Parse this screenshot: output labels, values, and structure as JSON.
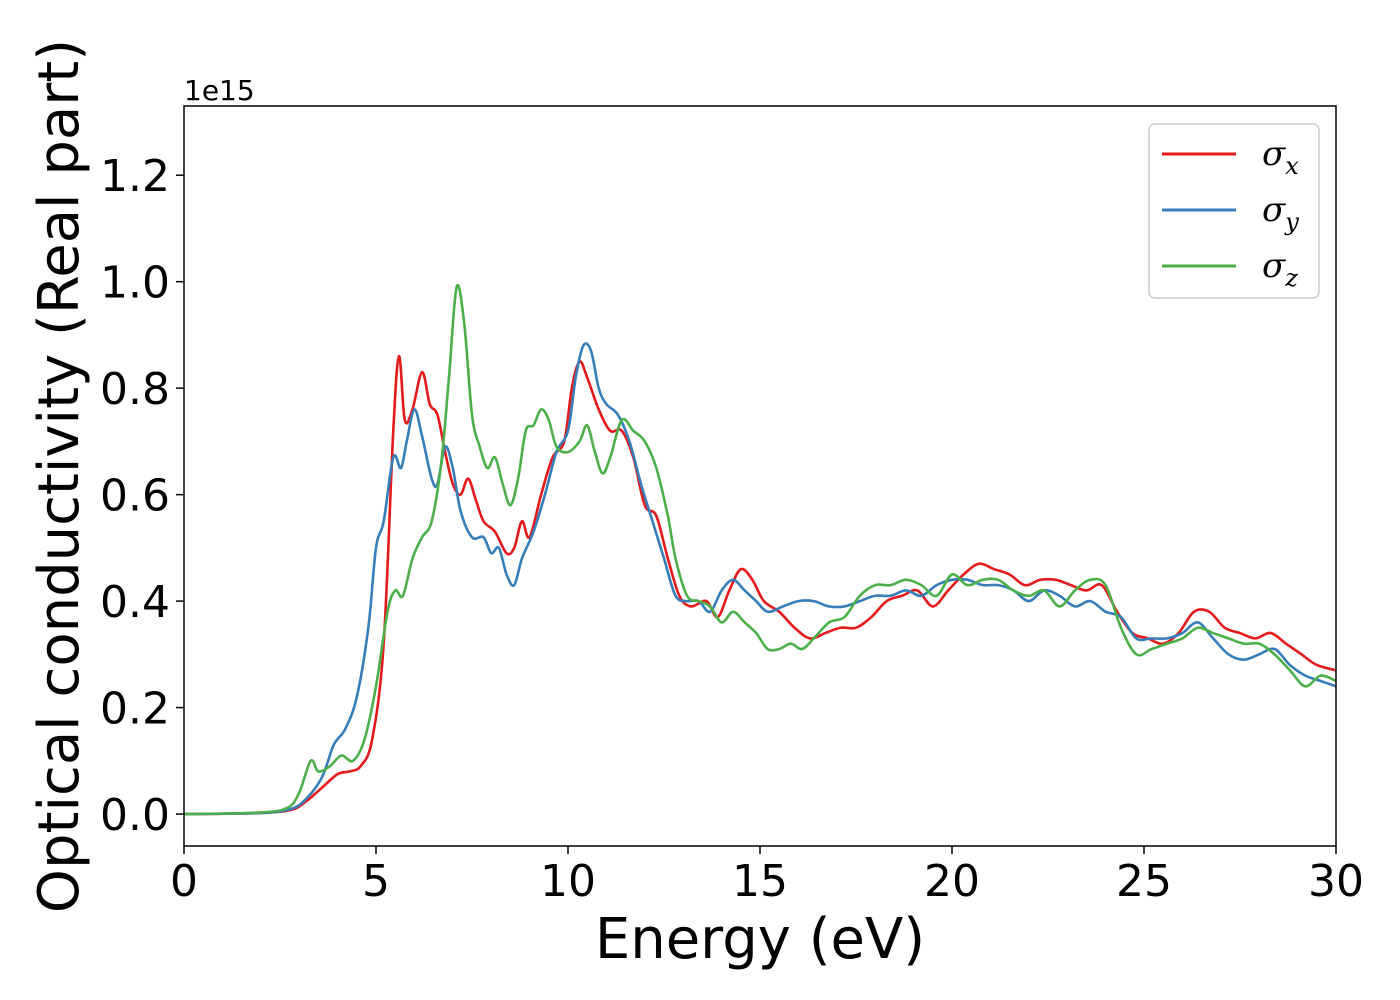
{
  "chart_data": {
    "type": "line",
    "xlabel": "Energy (eV)",
    "ylabel": "Optical conductivity (Real part)",
    "y_offset_text": "1e15",
    "xlim": [
      0,
      30
    ],
    "ylim": [
      -0.06,
      1.33
    ],
    "x_ticks": [
      0,
      5,
      10,
      15,
      20,
      25,
      30
    ],
    "x_tick_labels": [
      "0",
      "5",
      "10",
      "15",
      "20",
      "25",
      "30"
    ],
    "y_ticks": [
      0.0,
      0.2,
      0.4,
      0.6,
      0.8,
      1.0,
      1.2
    ],
    "y_tick_labels": [
      "0.0",
      "0.2",
      "0.4",
      "0.6",
      "0.8",
      "1.0",
      "1.2"
    ],
    "grid": false,
    "legend_position": "top-right",
    "series": [
      {
        "name": "σx",
        "symbol": "σ",
        "subscript": "x",
        "color": "#e41a1c",
        "points": [
          [
            0,
            0
          ],
          [
            2,
            0.002
          ],
          [
            2.8,
            0.008
          ],
          [
            3.2,
            0.025
          ],
          [
            3.6,
            0.05
          ],
          [
            4,
            0.075
          ],
          [
            4.3,
            0.08
          ],
          [
            4.6,
            0.09
          ],
          [
            4.9,
            0.14
          ],
          [
            5.2,
            0.32
          ],
          [
            5.45,
            0.72
          ],
          [
            5.6,
            0.86
          ],
          [
            5.75,
            0.74
          ],
          [
            5.95,
            0.76
          ],
          [
            6.2,
            0.83
          ],
          [
            6.4,
            0.77
          ],
          [
            6.6,
            0.75
          ],
          [
            6.8,
            0.68
          ],
          [
            7,
            0.62
          ],
          [
            7.2,
            0.6
          ],
          [
            7.4,
            0.63
          ],
          [
            7.6,
            0.59
          ],
          [
            7.8,
            0.55
          ],
          [
            8.1,
            0.53
          ],
          [
            8.4,
            0.49
          ],
          [
            8.6,
            0.5
          ],
          [
            8.8,
            0.55
          ],
          [
            9,
            0.52
          ],
          [
            9.3,
            0.6
          ],
          [
            9.6,
            0.67
          ],
          [
            9.9,
            0.7
          ],
          [
            10.1,
            0.8
          ],
          [
            10.3,
            0.85
          ],
          [
            10.5,
            0.82
          ],
          [
            10.8,
            0.76
          ],
          [
            11.1,
            0.72
          ],
          [
            11.4,
            0.72
          ],
          [
            11.7,
            0.67
          ],
          [
            12,
            0.58
          ],
          [
            12.3,
            0.56
          ],
          [
            12.6,
            0.48
          ],
          [
            12.9,
            0.41
          ],
          [
            13.2,
            0.39
          ],
          [
            13.6,
            0.4
          ],
          [
            13.9,
            0.37
          ],
          [
            14.2,
            0.42
          ],
          [
            14.5,
            0.46
          ],
          [
            14.8,
            0.44
          ],
          [
            15.1,
            0.4
          ],
          [
            15.5,
            0.38
          ],
          [
            15.9,
            0.35
          ],
          [
            16.3,
            0.33
          ],
          [
            16.7,
            0.34
          ],
          [
            17.1,
            0.35
          ],
          [
            17.5,
            0.35
          ],
          [
            17.9,
            0.37
          ],
          [
            18.3,
            0.4
          ],
          [
            18.7,
            0.41
          ],
          [
            19.1,
            0.42
          ],
          [
            19.5,
            0.39
          ],
          [
            19.9,
            0.42
          ],
          [
            20.3,
            0.45
          ],
          [
            20.7,
            0.47
          ],
          [
            21.1,
            0.46
          ],
          [
            21.5,
            0.45
          ],
          [
            21.9,
            0.43
          ],
          [
            22.3,
            0.44
          ],
          [
            22.7,
            0.44
          ],
          [
            23.1,
            0.43
          ],
          [
            23.5,
            0.42
          ],
          [
            23.9,
            0.43
          ],
          [
            24.3,
            0.38
          ],
          [
            24.7,
            0.34
          ],
          [
            25.1,
            0.33
          ],
          [
            25.5,
            0.32
          ],
          [
            25.9,
            0.34
          ],
          [
            26.3,
            0.38
          ],
          [
            26.7,
            0.38
          ],
          [
            27.1,
            0.35
          ],
          [
            27.5,
            0.34
          ],
          [
            27.9,
            0.33
          ],
          [
            28.3,
            0.34
          ],
          [
            28.7,
            0.32
          ],
          [
            29.1,
            0.3
          ],
          [
            29.5,
            0.28
          ],
          [
            30,
            0.27
          ]
        ]
      },
      {
        "name": "σy",
        "symbol": "σ",
        "subscript": "y",
        "color": "#377eb8",
        "points": [
          [
            0,
            0
          ],
          [
            2,
            0.002
          ],
          [
            2.8,
            0.01
          ],
          [
            3.2,
            0.03
          ],
          [
            3.6,
            0.07
          ],
          [
            3.9,
            0.13
          ],
          [
            4.2,
            0.16
          ],
          [
            4.5,
            0.22
          ],
          [
            4.8,
            0.35
          ],
          [
            5.0,
            0.5
          ],
          [
            5.2,
            0.55
          ],
          [
            5.45,
            0.67
          ],
          [
            5.65,
            0.65
          ],
          [
            5.8,
            0.7
          ],
          [
            6.0,
            0.76
          ],
          [
            6.2,
            0.71
          ],
          [
            6.45,
            0.63
          ],
          [
            6.6,
            0.62
          ],
          [
            6.8,
            0.69
          ],
          [
            7,
            0.65
          ],
          [
            7.2,
            0.57
          ],
          [
            7.5,
            0.52
          ],
          [
            7.8,
            0.52
          ],
          [
            8.0,
            0.49
          ],
          [
            8.2,
            0.5
          ],
          [
            8.4,
            0.45
          ],
          [
            8.6,
            0.43
          ],
          [
            8.8,
            0.48
          ],
          [
            9.1,
            0.53
          ],
          [
            9.4,
            0.6
          ],
          [
            9.7,
            0.68
          ],
          [
            10,
            0.72
          ],
          [
            10.2,
            0.82
          ],
          [
            10.4,
            0.88
          ],
          [
            10.6,
            0.87
          ],
          [
            10.8,
            0.8
          ],
          [
            11.0,
            0.77
          ],
          [
            11.3,
            0.75
          ],
          [
            11.6,
            0.7
          ],
          [
            11.9,
            0.62
          ],
          [
            12.2,
            0.55
          ],
          [
            12.5,
            0.48
          ],
          [
            12.8,
            0.41
          ],
          [
            13.1,
            0.4
          ],
          [
            13.4,
            0.4
          ],
          [
            13.7,
            0.38
          ],
          [
            14.0,
            0.42
          ],
          [
            14.3,
            0.44
          ],
          [
            14.6,
            0.42
          ],
          [
            14.9,
            0.4
          ],
          [
            15.2,
            0.38
          ],
          [
            15.6,
            0.39
          ],
          [
            16.0,
            0.4
          ],
          [
            16.4,
            0.4
          ],
          [
            16.8,
            0.39
          ],
          [
            17.2,
            0.39
          ],
          [
            17.6,
            0.4
          ],
          [
            18.0,
            0.41
          ],
          [
            18.4,
            0.41
          ],
          [
            18.8,
            0.42
          ],
          [
            19.2,
            0.41
          ],
          [
            19.6,
            0.43
          ],
          [
            20.0,
            0.44
          ],
          [
            20.4,
            0.44
          ],
          [
            20.8,
            0.43
          ],
          [
            21.2,
            0.43
          ],
          [
            21.6,
            0.42
          ],
          [
            22.0,
            0.4
          ],
          [
            22.4,
            0.42
          ],
          [
            22.8,
            0.41
          ],
          [
            23.2,
            0.39
          ],
          [
            23.6,
            0.4
          ],
          [
            24.0,
            0.38
          ],
          [
            24.4,
            0.37
          ],
          [
            24.8,
            0.33
          ],
          [
            25.2,
            0.33
          ],
          [
            25.6,
            0.33
          ],
          [
            26.0,
            0.34
          ],
          [
            26.4,
            0.36
          ],
          [
            26.8,
            0.33
          ],
          [
            27.2,
            0.3
          ],
          [
            27.6,
            0.29
          ],
          [
            28.0,
            0.3
          ],
          [
            28.4,
            0.31
          ],
          [
            28.8,
            0.28
          ],
          [
            29.2,
            0.26
          ],
          [
            29.6,
            0.25
          ],
          [
            30,
            0.24
          ]
        ]
      },
      {
        "name": "σz",
        "symbol": "σ",
        "subscript": "z",
        "color": "#4daf4a",
        "points": [
          [
            0,
            0
          ],
          [
            2,
            0.003
          ],
          [
            2.7,
            0.012
          ],
          [
            3.0,
            0.04
          ],
          [
            3.3,
            0.1
          ],
          [
            3.5,
            0.08
          ],
          [
            3.8,
            0.09
          ],
          [
            4.1,
            0.11
          ],
          [
            4.4,
            0.1
          ],
          [
            4.7,
            0.14
          ],
          [
            5.0,
            0.24
          ],
          [
            5.3,
            0.38
          ],
          [
            5.5,
            0.42
          ],
          [
            5.7,
            0.41
          ],
          [
            5.95,
            0.48
          ],
          [
            6.2,
            0.52
          ],
          [
            6.45,
            0.55
          ],
          [
            6.7,
            0.66
          ],
          [
            6.9,
            0.82
          ],
          [
            7.1,
            0.99
          ],
          [
            7.3,
            0.92
          ],
          [
            7.5,
            0.75
          ],
          [
            7.7,
            0.69
          ],
          [
            7.9,
            0.65
          ],
          [
            8.1,
            0.67
          ],
          [
            8.3,
            0.62
          ],
          [
            8.5,
            0.58
          ],
          [
            8.7,
            0.63
          ],
          [
            8.9,
            0.72
          ],
          [
            9.1,
            0.73
          ],
          [
            9.3,
            0.76
          ],
          [
            9.5,
            0.74
          ],
          [
            9.7,
            0.69
          ],
          [
            10,
            0.68
          ],
          [
            10.3,
            0.7
          ],
          [
            10.5,
            0.73
          ],
          [
            10.7,
            0.68
          ],
          [
            10.9,
            0.64
          ],
          [
            11.1,
            0.67
          ],
          [
            11.4,
            0.74
          ],
          [
            11.7,
            0.72
          ],
          [
            12.0,
            0.7
          ],
          [
            12.3,
            0.65
          ],
          [
            12.6,
            0.56
          ],
          [
            12.8,
            0.48
          ],
          [
            13.1,
            0.41
          ],
          [
            13.4,
            0.4
          ],
          [
            13.7,
            0.39
          ],
          [
            14.0,
            0.36
          ],
          [
            14.3,
            0.38
          ],
          [
            14.6,
            0.36
          ],
          [
            14.9,
            0.34
          ],
          [
            15.2,
            0.31
          ],
          [
            15.5,
            0.31
          ],
          [
            15.8,
            0.32
          ],
          [
            16.1,
            0.31
          ],
          [
            16.4,
            0.33
          ],
          [
            16.8,
            0.36
          ],
          [
            17.2,
            0.37
          ],
          [
            17.6,
            0.41
          ],
          [
            18.0,
            0.43
          ],
          [
            18.4,
            0.43
          ],
          [
            18.8,
            0.44
          ],
          [
            19.2,
            0.43
          ],
          [
            19.6,
            0.41
          ],
          [
            20.0,
            0.45
          ],
          [
            20.4,
            0.43
          ],
          [
            20.8,
            0.44
          ],
          [
            21.2,
            0.44
          ],
          [
            21.6,
            0.42
          ],
          [
            22.0,
            0.41
          ],
          [
            22.4,
            0.42
          ],
          [
            22.8,
            0.39
          ],
          [
            23.2,
            0.42
          ],
          [
            23.6,
            0.44
          ],
          [
            24.0,
            0.43
          ],
          [
            24.4,
            0.35
          ],
          [
            24.8,
            0.3
          ],
          [
            25.2,
            0.31
          ],
          [
            25.6,
            0.32
          ],
          [
            26.0,
            0.33
          ],
          [
            26.4,
            0.35
          ],
          [
            26.8,
            0.34
          ],
          [
            27.2,
            0.33
          ],
          [
            27.6,
            0.32
          ],
          [
            28.0,
            0.32
          ],
          [
            28.4,
            0.3
          ],
          [
            28.8,
            0.27
          ],
          [
            29.2,
            0.24
          ],
          [
            29.6,
            0.26
          ],
          [
            30,
            0.25
          ]
        ]
      }
    ]
  }
}
